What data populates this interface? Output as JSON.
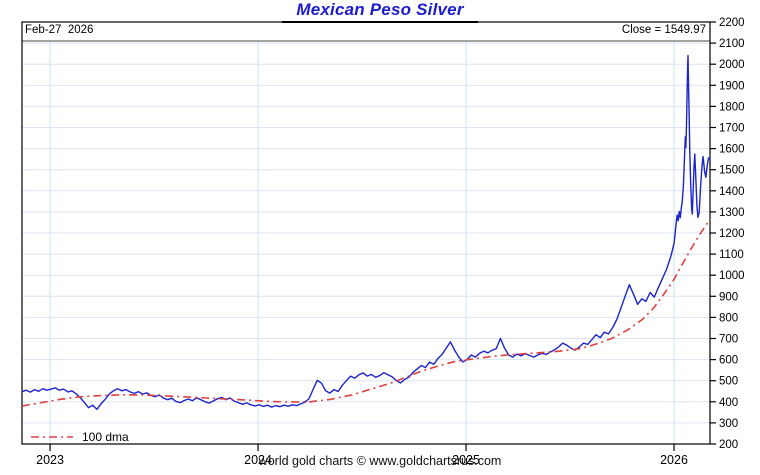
{
  "title": "Mexican Peso Silver",
  "header": {
    "date_label": "Feb-27  2026",
    "close_label": "Close = 1549.97"
  },
  "legend": {
    "label": "100 dma"
  },
  "footer": {
    "credit": "world gold charts © www.goldchartsrus.com"
  },
  "colors": {
    "title": "#1c1ccf",
    "price_line": "#1c24cc",
    "dma_line": "#dd4040",
    "grid_h": "#d9e5f5",
    "grid_v": "#cfe0f2",
    "frame": "#000000",
    "header_rule": "#444444",
    "text": "#000000"
  },
  "chart_data": {
    "type": "line",
    "title": "Mexican Peso Silver",
    "xlabel": "",
    "ylabel": "",
    "xlim": [
      2022.865,
      2026.173
    ],
    "ylim": [
      200,
      2200
    ],
    "y_tick_step": 100,
    "x_ticks": [
      2023,
      2024,
      2025,
      2026
    ],
    "grid": true,
    "legend_position": "bottom-left",
    "annotations": [
      "Feb-27  2026",
      "Close = 1549.97"
    ],
    "series": [
      {
        "name": "Mexican Peso Silver price",
        "style": "solid",
        "points": [
          [
            2022.865,
            448
          ],
          [
            2022.885,
            455
          ],
          [
            2022.905,
            446
          ],
          [
            2022.925,
            458
          ],
          [
            2022.945,
            450
          ],
          [
            2022.965,
            462
          ],
          [
            2022.985,
            455
          ],
          [
            2023.005,
            460
          ],
          [
            2023.025,
            466
          ],
          [
            2023.045,
            455
          ],
          [
            2023.065,
            460
          ],
          [
            2023.085,
            447
          ],
          [
            2023.105,
            452
          ],
          [
            2023.125,
            438
          ],
          [
            2023.145,
            420
          ],
          [
            2023.165,
            396
          ],
          [
            2023.185,
            372
          ],
          [
            2023.205,
            384
          ],
          [
            2023.225,
            364
          ],
          [
            2023.245,
            390
          ],
          [
            2023.265,
            412
          ],
          [
            2023.285,
            438
          ],
          [
            2023.305,
            452
          ],
          [
            2023.325,
            462
          ],
          [
            2023.345,
            452
          ],
          [
            2023.365,
            458
          ],
          [
            2023.385,
            447
          ],
          [
            2023.405,
            440
          ],
          [
            2023.425,
            448
          ],
          [
            2023.445,
            437
          ],
          [
            2023.465,
            442
          ],
          [
            2023.485,
            430
          ],
          [
            2023.505,
            424
          ],
          [
            2023.525,
            432
          ],
          [
            2023.545,
            418
          ],
          [
            2023.565,
            410
          ],
          [
            2023.585,
            417
          ],
          [
            2023.605,
            402
          ],
          [
            2023.625,
            396
          ],
          [
            2023.645,
            406
          ],
          [
            2023.665,
            413
          ],
          [
            2023.685,
            405
          ],
          [
            2023.705,
            419
          ],
          [
            2023.725,
            410
          ],
          [
            2023.745,
            400
          ],
          [
            2023.765,
            394
          ],
          [
            2023.785,
            404
          ],
          [
            2023.805,
            414
          ],
          [
            2023.825,
            421
          ],
          [
            2023.845,
            410
          ],
          [
            2023.865,
            418
          ],
          [
            2023.885,
            404
          ],
          [
            2023.905,
            396
          ],
          [
            2023.925,
            388
          ],
          [
            2023.945,
            395
          ],
          [
            2023.965,
            386
          ],
          [
            2023.985,
            380
          ],
          [
            2024.005,
            386
          ],
          [
            2024.025,
            378
          ],
          [
            2024.045,
            384
          ],
          [
            2024.065,
            375
          ],
          [
            2024.085,
            382
          ],
          [
            2024.105,
            377
          ],
          [
            2024.125,
            384
          ],
          [
            2024.145,
            379
          ],
          [
            2024.165,
            386
          ],
          [
            2024.185,
            382
          ],
          [
            2024.205,
            390
          ],
          [
            2024.225,
            398
          ],
          [
            2024.245,
            415
          ],
          [
            2024.265,
            460
          ],
          [
            2024.285,
            502
          ],
          [
            2024.305,
            488
          ],
          [
            2024.325,
            452
          ],
          [
            2024.345,
            441
          ],
          [
            2024.365,
            458
          ],
          [
            2024.385,
            449
          ],
          [
            2024.405,
            478
          ],
          [
            2024.425,
            500
          ],
          [
            2024.445,
            522
          ],
          [
            2024.465,
            512
          ],
          [
            2024.485,
            528
          ],
          [
            2024.505,
            537
          ],
          [
            2024.525,
            522
          ],
          [
            2024.545,
            530
          ],
          [
            2024.565,
            516
          ],
          [
            2024.585,
            524
          ],
          [
            2024.605,
            538
          ],
          [
            2024.625,
            528
          ],
          [
            2024.645,
            518
          ],
          [
            2024.665,
            500
          ],
          [
            2024.685,
            489
          ],
          [
            2024.705,
            506
          ],
          [
            2024.725,
            516
          ],
          [
            2024.745,
            540
          ],
          [
            2024.765,
            556
          ],
          [
            2024.785,
            572
          ],
          [
            2024.805,
            562
          ],
          [
            2024.825,
            588
          ],
          [
            2024.845,
            578
          ],
          [
            2024.865,
            605
          ],
          [
            2024.885,
            625
          ],
          [
            2024.905,
            655
          ],
          [
            2024.925,
            684
          ],
          [
            2024.945,
            645
          ],
          [
            2024.965,
            612
          ],
          [
            2024.985,
            589
          ],
          [
            2025.005,
            600
          ],
          [
            2025.025,
            622
          ],
          [
            2025.045,
            612
          ],
          [
            2025.065,
            630
          ],
          [
            2025.085,
            640
          ],
          [
            2025.105,
            632
          ],
          [
            2025.125,
            644
          ],
          [
            2025.145,
            652
          ],
          [
            2025.165,
            700
          ],
          [
            2025.185,
            655
          ],
          [
            2025.205,
            622
          ],
          [
            2025.225,
            612
          ],
          [
            2025.245,
            626
          ],
          [
            2025.265,
            618
          ],
          [
            2025.285,
            628
          ],
          [
            2025.305,
            620
          ],
          [
            2025.325,
            612
          ],
          [
            2025.345,
            622
          ],
          [
            2025.365,
            630
          ],
          [
            2025.385,
            624
          ],
          [
            2025.405,
            636
          ],
          [
            2025.425,
            646
          ],
          [
            2025.445,
            660
          ],
          [
            2025.465,
            678
          ],
          [
            2025.485,
            668
          ],
          [
            2025.505,
            654
          ],
          [
            2025.525,
            645
          ],
          [
            2025.545,
            660
          ],
          [
            2025.565,
            678
          ],
          [
            2025.585,
            672
          ],
          [
            2025.605,
            695
          ],
          [
            2025.625,
            718
          ],
          [
            2025.645,
            704
          ],
          [
            2025.665,
            730
          ],
          [
            2025.685,
            722
          ],
          [
            2025.705,
            752
          ],
          [
            2025.725,
            790
          ],
          [
            2025.745,
            845
          ],
          [
            2025.765,
            900
          ],
          [
            2025.785,
            955
          ],
          [
            2025.805,
            910
          ],
          [
            2025.825,
            862
          ],
          [
            2025.845,
            888
          ],
          [
            2025.865,
            876
          ],
          [
            2025.885,
            918
          ],
          [
            2025.905,
            896
          ],
          [
            2025.925,
            942
          ],
          [
            2025.945,
            986
          ],
          [
            2025.965,
            1030
          ],
          [
            2025.985,
            1090
          ],
          [
            2026.0,
            1150
          ],
          [
            2026.005,
            1196
          ],
          [
            2026.01,
            1242
          ],
          [
            2026.015,
            1285
          ],
          [
            2026.02,
            1258
          ],
          [
            2026.025,
            1302
          ],
          [
            2026.03,
            1272
          ],
          [
            2026.035,
            1318
          ],
          [
            2026.04,
            1352
          ],
          [
            2026.045,
            1425
          ],
          [
            2026.05,
            1545
          ],
          [
            2026.054,
            1655
          ],
          [
            2026.057,
            1605
          ],
          [
            2026.06,
            1715
          ],
          [
            2026.063,
            1860
          ],
          [
            2026.065,
            1965
          ],
          [
            2026.067,
            2041
          ],
          [
            2026.07,
            1892
          ],
          [
            2026.073,
            1742
          ],
          [
            2026.076,
            1582
          ],
          [
            2026.08,
            1432
          ],
          [
            2026.085,
            1312
          ],
          [
            2026.088,
            1290
          ],
          [
            2026.092,
            1408
          ],
          [
            2026.096,
            1512
          ],
          [
            2026.1,
            1574
          ],
          [
            2026.105,
            1452
          ],
          [
            2026.11,
            1332
          ],
          [
            2026.115,
            1274
          ],
          [
            2026.121,
            1298
          ],
          [
            2026.128,
            1422
          ],
          [
            2026.135,
            1522
          ],
          [
            2026.14,
            1562
          ],
          [
            2026.147,
            1492
          ],
          [
            2026.153,
            1464
          ],
          [
            2026.16,
            1520
          ],
          [
            2026.166,
            1556
          ],
          [
            2026.173,
            1550
          ]
        ]
      },
      {
        "name": "100 dma",
        "style": "dashdot",
        "points": [
          [
            2022.865,
            380
          ],
          [
            2022.95,
            395
          ],
          [
            2023.05,
            412
          ],
          [
            2023.15,
            424
          ],
          [
            2023.25,
            430
          ],
          [
            2023.35,
            433
          ],
          [
            2023.45,
            432
          ],
          [
            2023.55,
            428
          ],
          [
            2023.65,
            423
          ],
          [
            2023.75,
            418
          ],
          [
            2023.85,
            413
          ],
          [
            2023.95,
            408
          ],
          [
            2024.05,
            402
          ],
          [
            2024.15,
            399
          ],
          [
            2024.25,
            400
          ],
          [
            2024.35,
            412
          ],
          [
            2024.45,
            432
          ],
          [
            2024.55,
            462
          ],
          [
            2024.65,
            492
          ],
          [
            2024.76,
            536
          ],
          [
            2024.85,
            565
          ],
          [
            2024.95,
            592
          ],
          [
            2025.05,
            605
          ],
          [
            2025.15,
            618
          ],
          [
            2025.25,
            626
          ],
          [
            2025.35,
            632
          ],
          [
            2025.45,
            640
          ],
          [
            2025.55,
            652
          ],
          [
            2025.62,
            672
          ],
          [
            2025.7,
            700
          ],
          [
            2025.78,
            742
          ],
          [
            2025.85,
            792
          ],
          [
            2025.9,
            842
          ],
          [
            2025.95,
            908
          ],
          [
            2026.0,
            980
          ],
          [
            2026.04,
            1052
          ],
          [
            2026.08,
            1122
          ],
          [
            2026.12,
            1188
          ],
          [
            2026.16,
            1246
          ],
          [
            2026.173,
            1266
          ]
        ]
      }
    ],
    "close_value": 1549.97,
    "last_date": "Feb-27 2026"
  }
}
